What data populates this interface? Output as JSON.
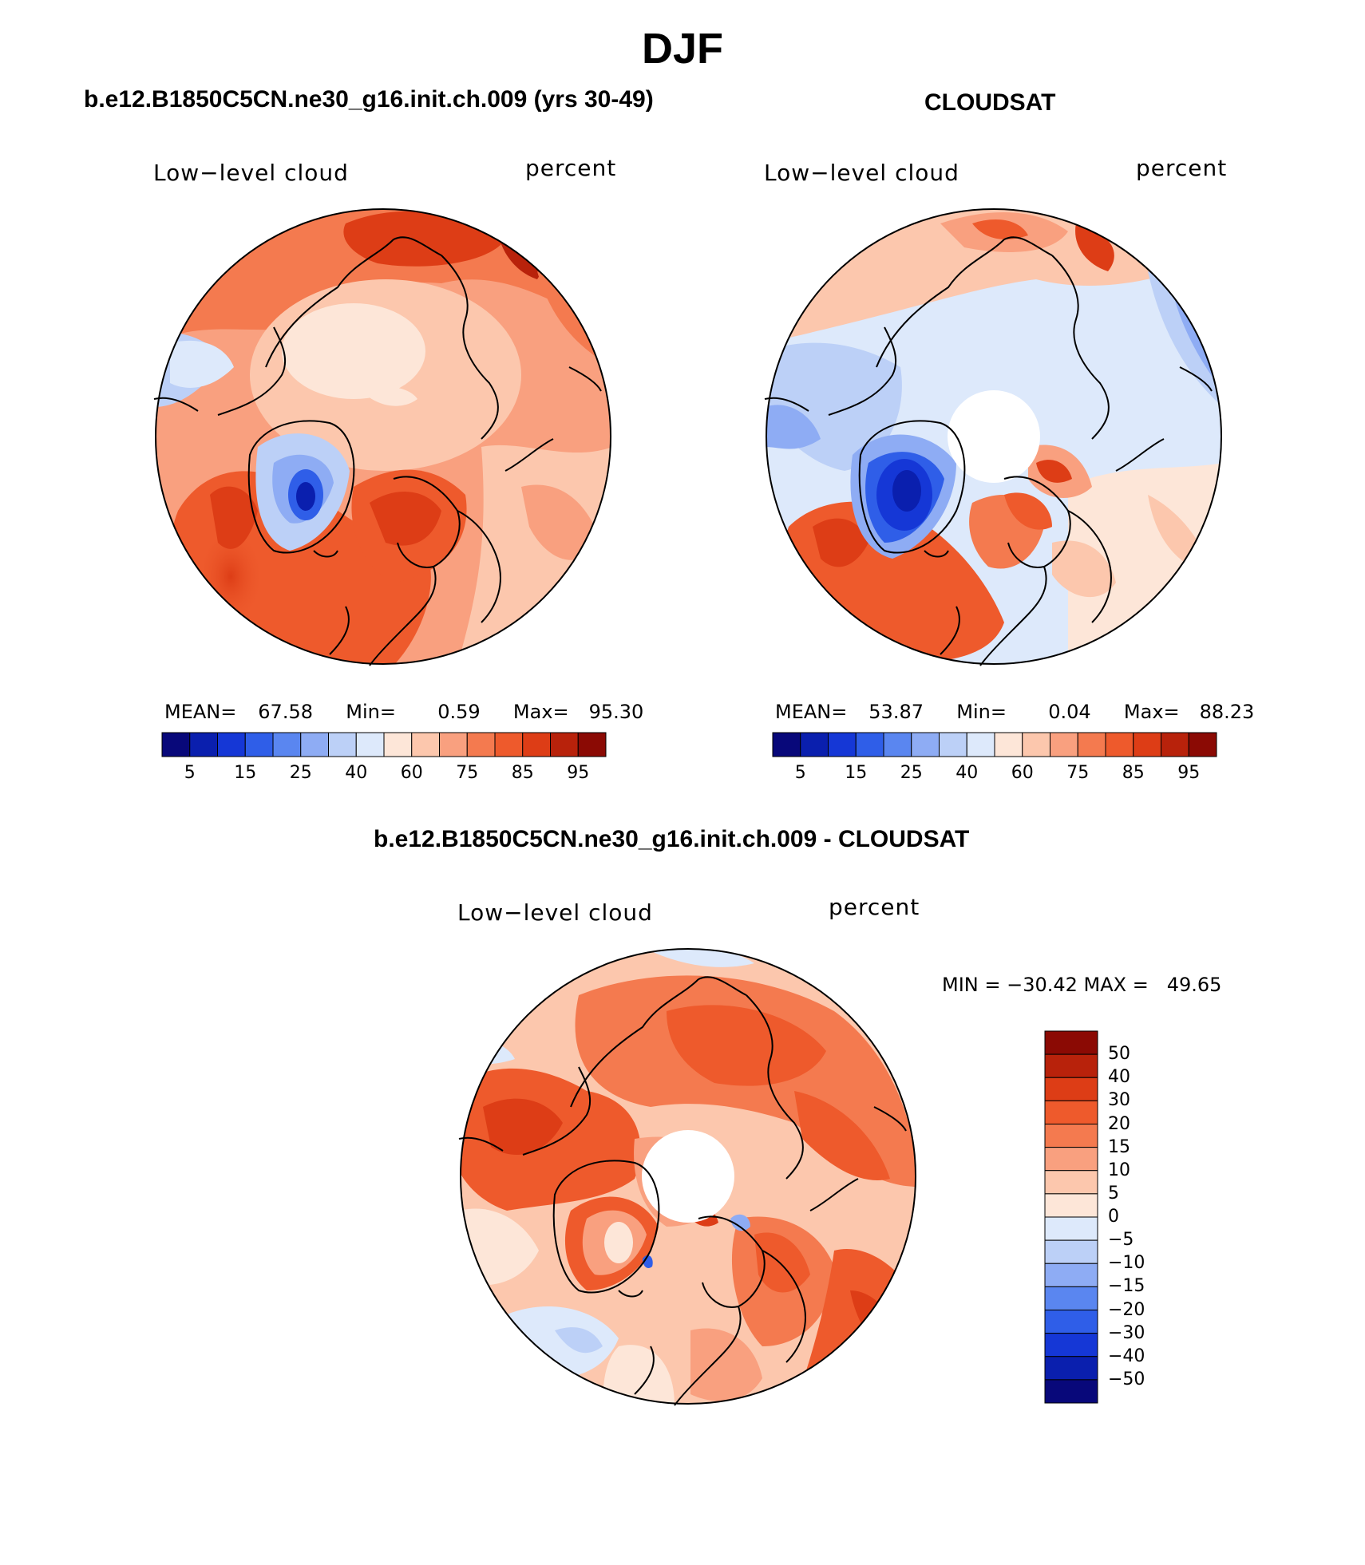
{
  "title": "DJF",
  "panels": [
    {
      "case": "b.e12.B1850C5CN.ne30_g16.init.ch.009 (yrs 30-49)",
      "variable": "Low−level cloud",
      "units": "percent",
      "mean_label": "MEAN=",
      "mean": "67.58",
      "min_label": "Min=",
      "min": "0.59",
      "max_label": "Max=",
      "max": "95.30"
    },
    {
      "case": "CLOUDSAT",
      "variable": "Low−level cloud",
      "units": "percent",
      "mean_label": "MEAN=",
      "mean": "53.87",
      "min_label": "Min=",
      "min": "0.04",
      "max_label": "Max=",
      "max": "88.23"
    }
  ],
  "colorbar_horizontal": {
    "labels": [
      "5",
      "15",
      "25",
      "40",
      "60",
      "75",
      "85",
      "95"
    ],
    "colors": [
      "#08087a",
      "#0a1fae",
      "#1537d6",
      "#2f5ee8",
      "#5a86f0",
      "#8eacf4",
      "#bcd0f7",
      "#dde9fb",
      "#fde6d8",
      "#fcc7ad",
      "#f9a07f",
      "#f47a4f",
      "#ee5a2c",
      "#dd3d16",
      "#b8220b",
      "#8b0a04"
    ]
  },
  "difference": {
    "case": "b.e12.B1850C5CN.ne30_g16.init.ch.009 - CLOUDSAT",
    "variable": "Low−level cloud",
    "units": "percent",
    "minmax_text": "MIN = −30.42 MAX =   49.65",
    "colorbar_labels": [
      "50",
      "40",
      "30",
      "20",
      "15",
      "10",
      "5",
      "0",
      "−5",
      "−10",
      "−15",
      "−20",
      "−30",
      "−40",
      "−50"
    ],
    "colorbar_colors": [
      "#8b0a04",
      "#b8220b",
      "#dd3d16",
      "#ee5a2c",
      "#f47a4f",
      "#f9a07f",
      "#fcc7ad",
      "#fde6d8",
      "#dde9fb",
      "#bcd0f7",
      "#8eacf4",
      "#5a86f0",
      "#2f5ee8",
      "#1537d6",
      "#0a1fae",
      "#08087a"
    ]
  }
}
